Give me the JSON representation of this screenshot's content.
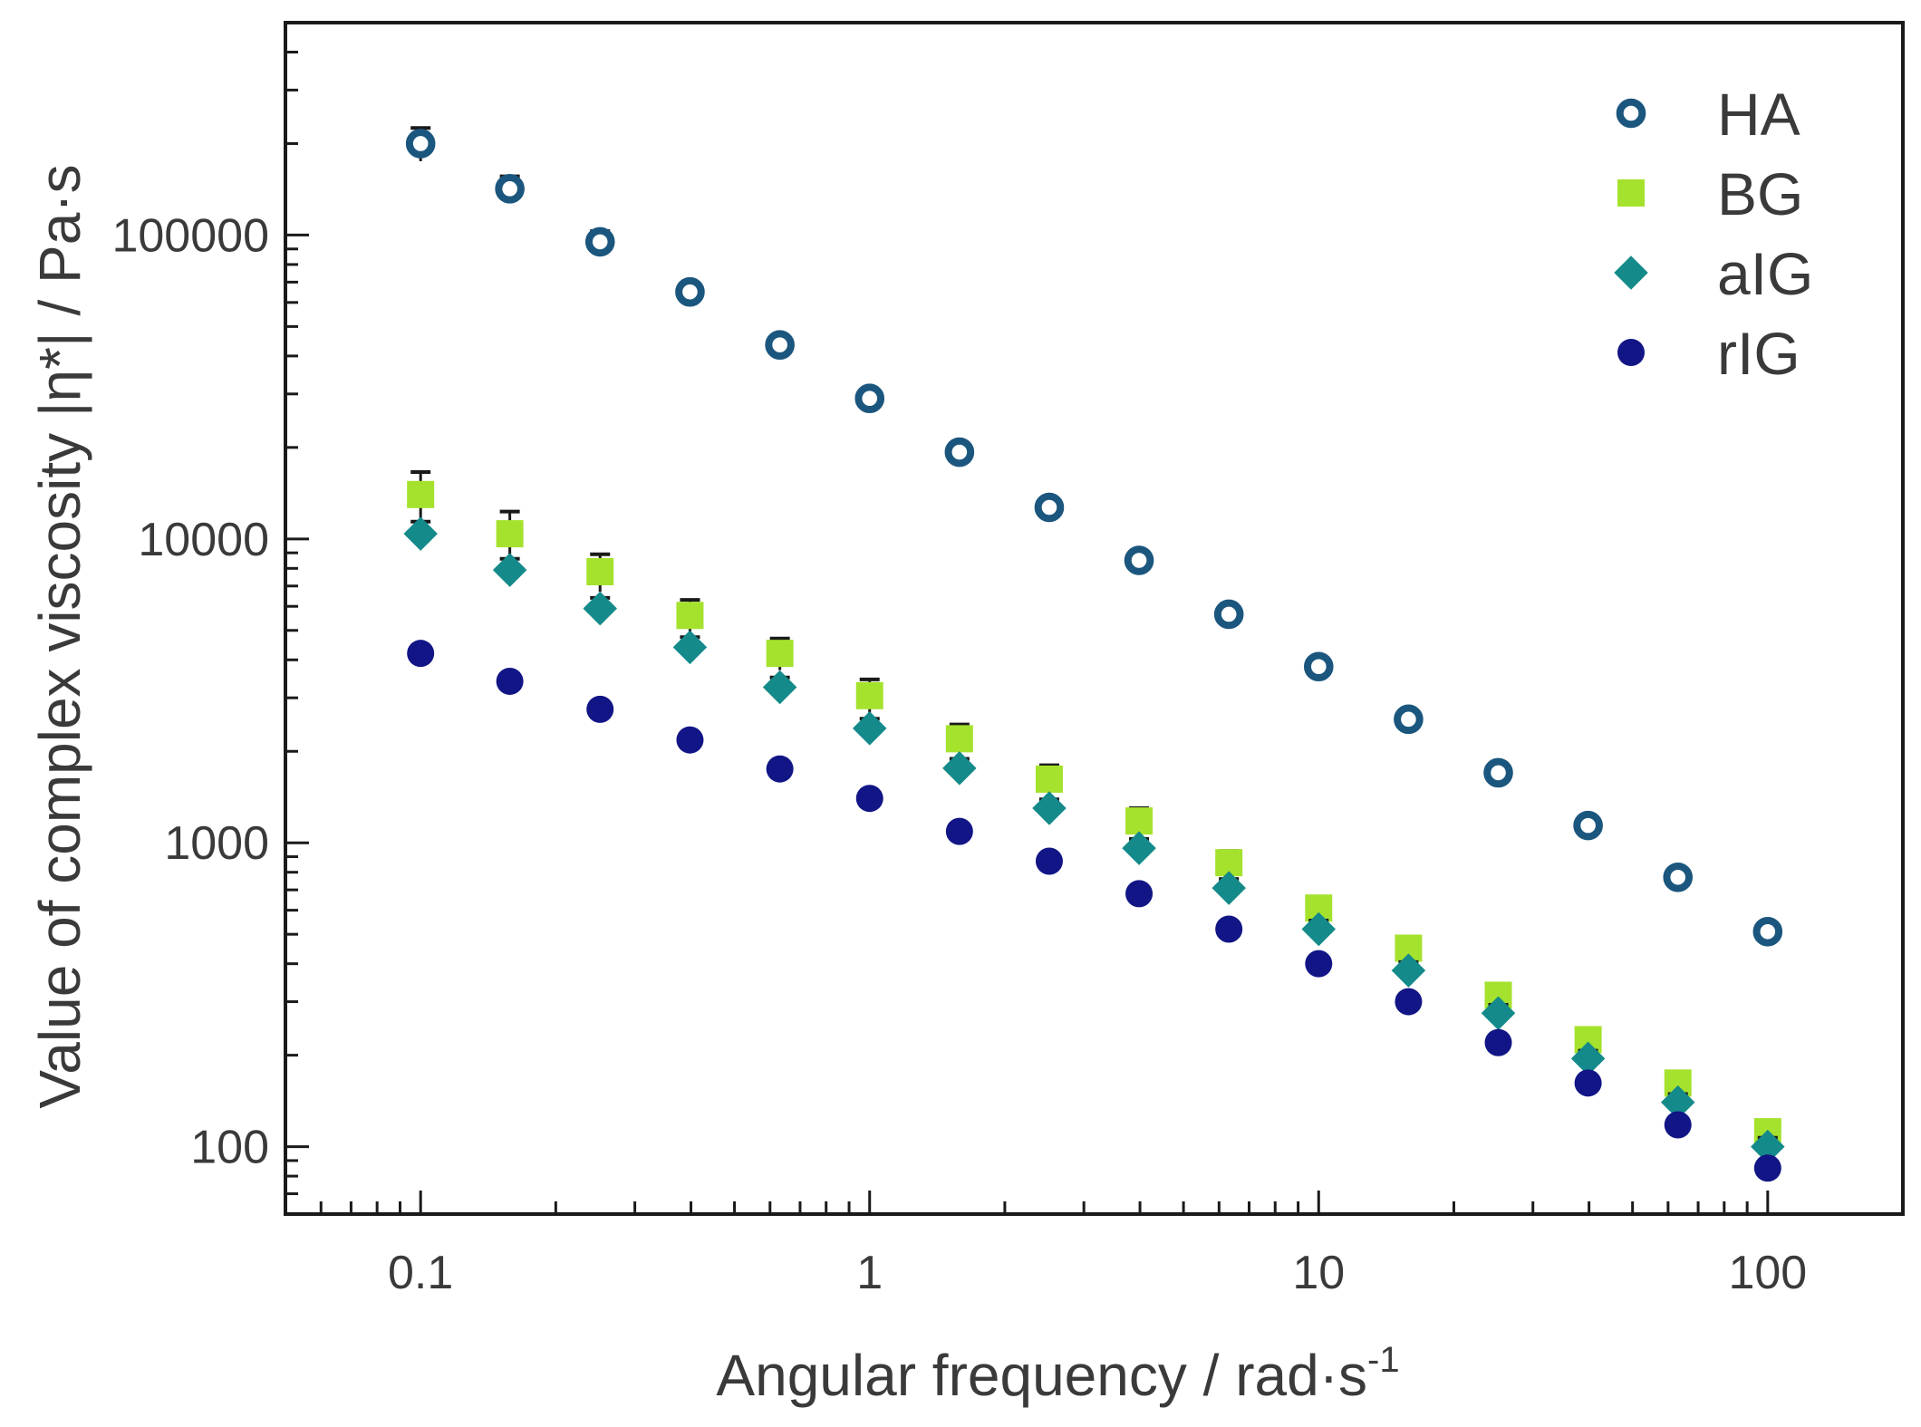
{
  "chart_data": {
    "type": "scatter",
    "xscale": "log",
    "yscale": "log",
    "xlim": [
      0.05,
      200
    ],
    "ylim": [
      60,
      500000
    ],
    "xlabel": "Angular frequency / rad·s",
    "xlabel_sup": "-1",
    "ylabel": "Value of complex viscosity |η*| / Pa·s",
    "xticks": [
      {
        "value": 0.1,
        "label": "0.1"
      },
      {
        "value": 1,
        "label": "1"
      },
      {
        "value": 10,
        "label": "10"
      },
      {
        "value": 100,
        "label": "100"
      }
    ],
    "yticks": [
      {
        "value": 100,
        "label": "100"
      },
      {
        "value": 1000,
        "label": "1000"
      },
      {
        "value": 10000,
        "label": "10000"
      },
      {
        "value": 100000,
        "label": "100000"
      }
    ],
    "legend_position": "top-right",
    "x": [
      0.1,
      0.158,
      0.251,
      0.398,
      0.631,
      1,
      1.585,
      2.512,
      3.981,
      6.31,
      10,
      15.85,
      25.12,
      39.81,
      63.1,
      100
    ],
    "series": [
      {
        "name": "HA",
        "marker": "circle-hollow",
        "color": "#1b567e",
        "values": [
          200000,
          142000,
          95000,
          65000,
          43500,
          29000,
          19300,
          12700,
          8500,
          5650,
          3800,
          2550,
          1700,
          1140,
          770,
          510
        ],
        "errors": [
          25000,
          14000,
          8000,
          4000,
          3000,
          2000,
          1000,
          700,
          500,
          300,
          200,
          150,
          90,
          60,
          40,
          25
        ]
      },
      {
        "name": "BG",
        "marker": "square",
        "color": "#a5e22e",
        "values": [
          14000,
          10400,
          7800,
          5600,
          4200,
          3050,
          2200,
          1620,
          1180,
          860,
          610,
          450,
          315,
          225,
          162,
          112
        ],
        "errors": [
          2600,
          1900,
          1100,
          700,
          500,
          400,
          250,
          180,
          120,
          80,
          55,
          35,
          25,
          18,
          12,
          9
        ]
      },
      {
        "name": "aIG",
        "marker": "diamond",
        "color": "#148a8a",
        "values": [
          10400,
          7900,
          5900,
          4400,
          3250,
          2380,
          1760,
          1300,
          960,
          710,
          520,
          380,
          275,
          195,
          140,
          100
        ],
        "errors": [
          1000,
          700,
          500,
          350,
          250,
          180,
          130,
          90,
          70,
          50,
          35,
          25,
          18,
          12,
          9,
          7
        ]
      },
      {
        "name": "rIG",
        "marker": "circle",
        "color": "#111585",
        "values": [
          4200,
          3400,
          2750,
          2180,
          1750,
          1400,
          1090,
          870,
          680,
          520,
          400,
          300,
          220,
          162,
          118,
          85
        ],
        "errors": [
          250,
          180,
          140,
          110,
          80,
          70,
          55,
          40,
          35,
          25,
          18,
          14,
          10,
          8,
          6,
          4
        ]
      }
    ]
  }
}
